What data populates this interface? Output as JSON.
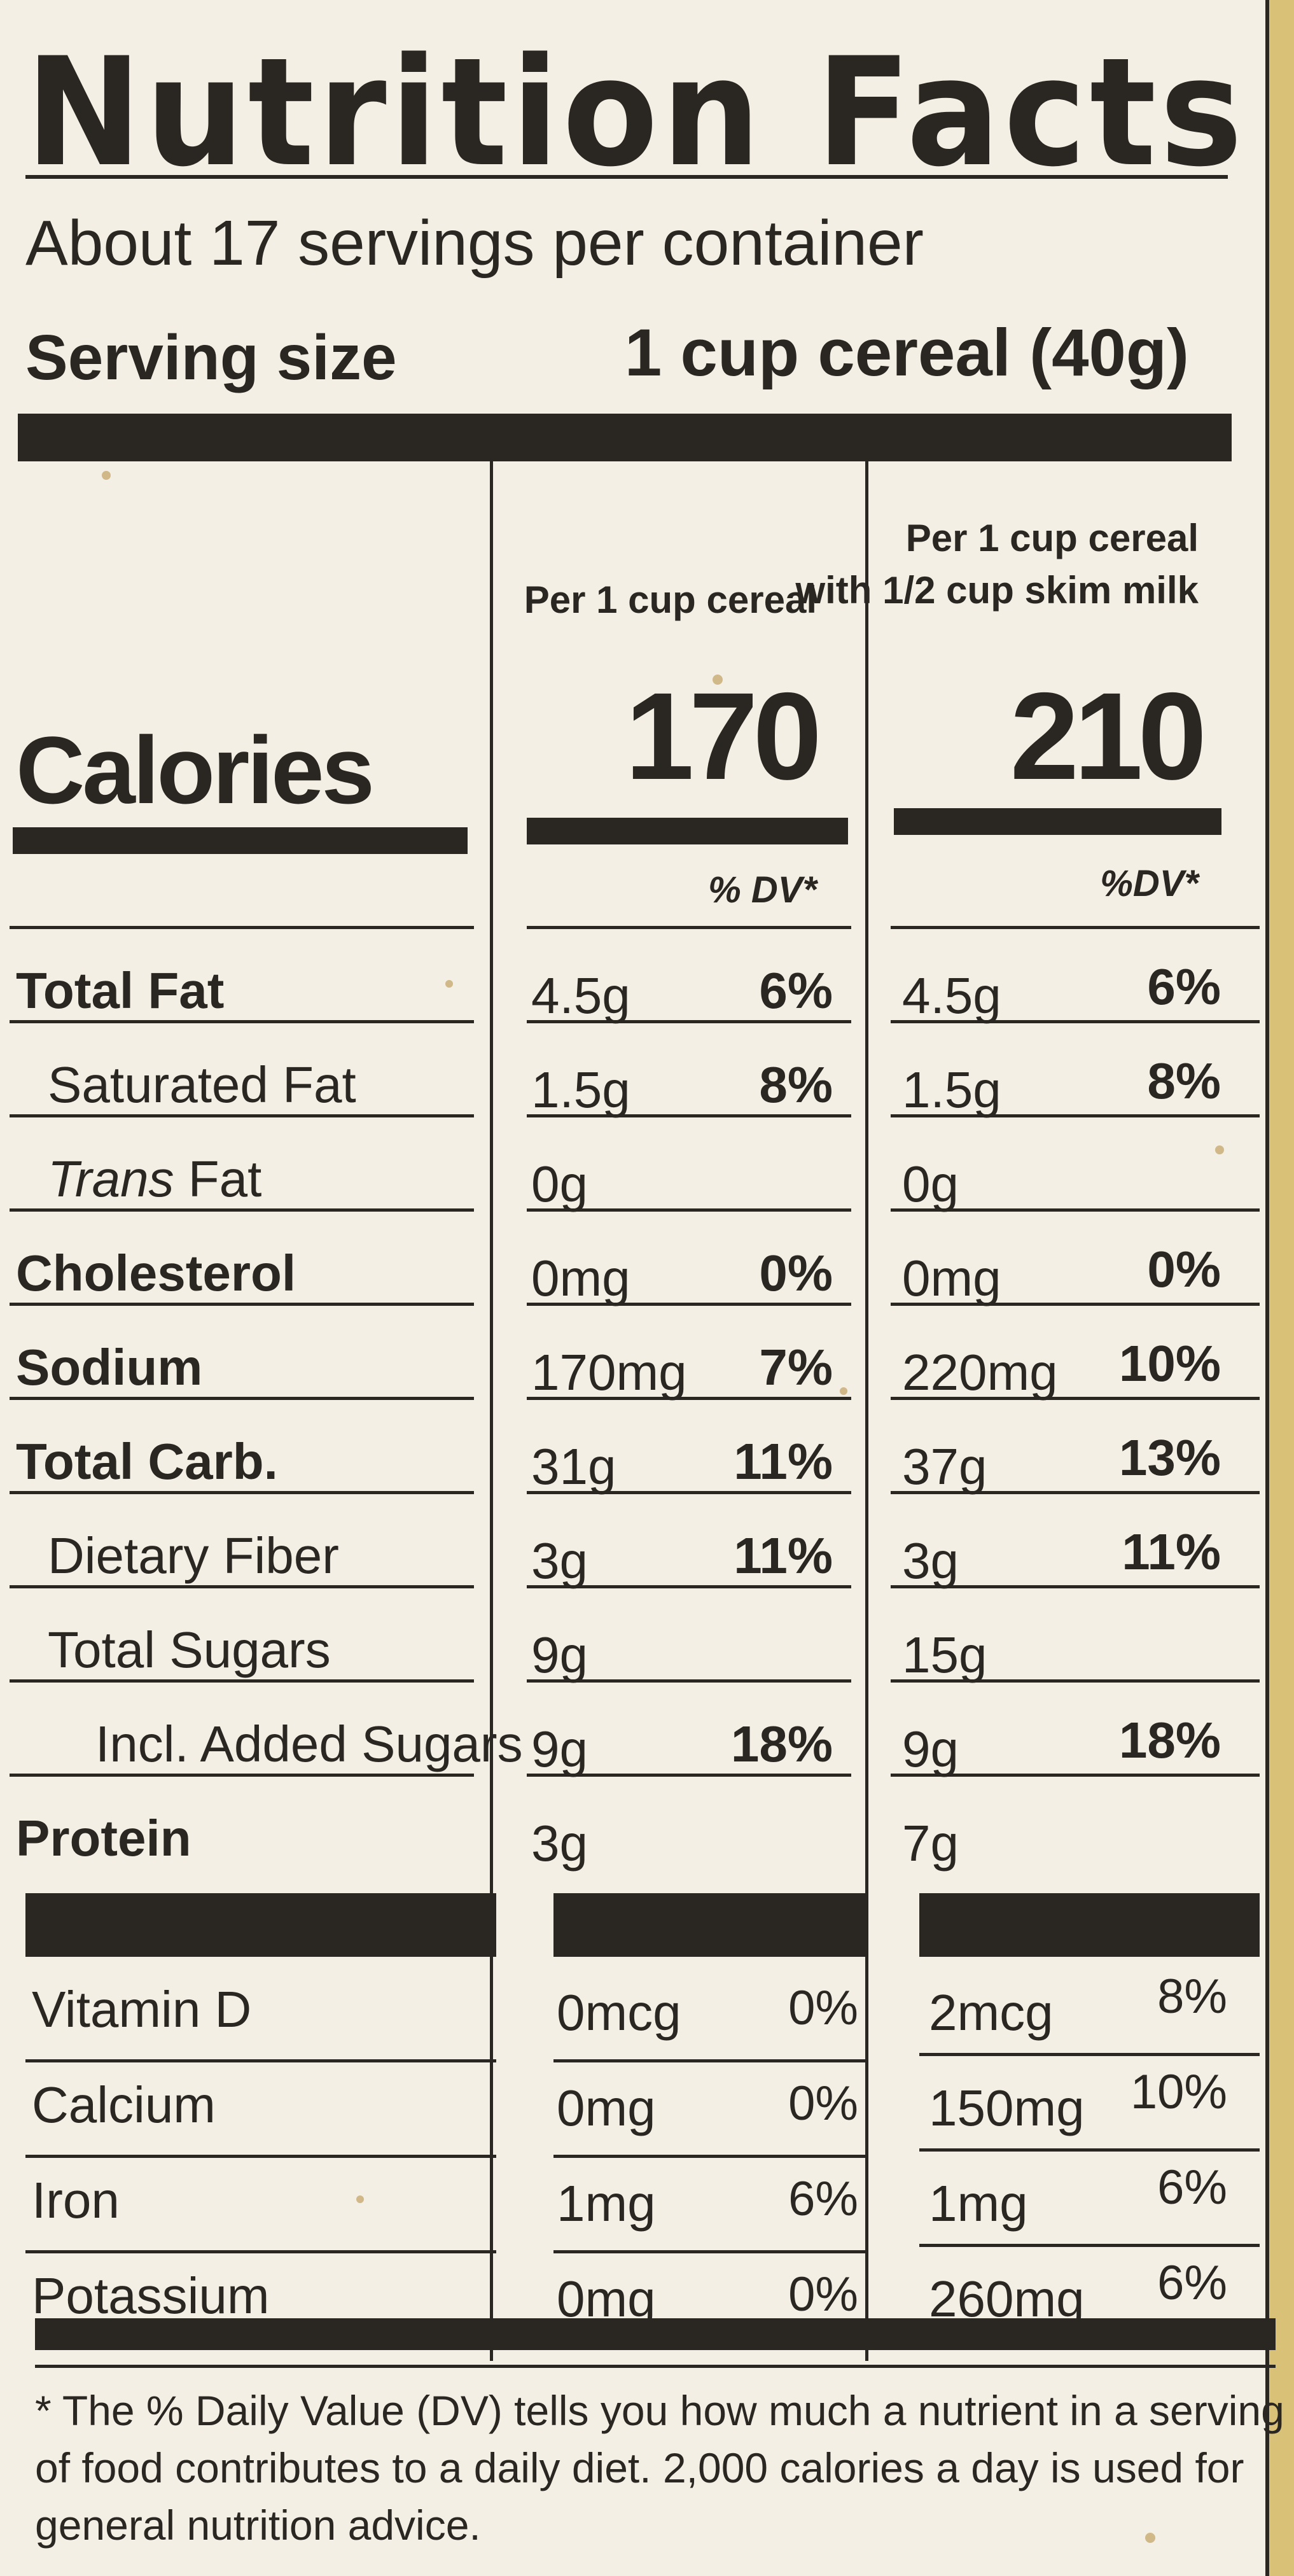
{
  "title": "Nutrition Facts",
  "servings_per_container": "About 17 servings per container",
  "serving_size_label": "Serving size",
  "serving_size_value": "1 cup cereal (40g)",
  "columns": {
    "col1_header": "Per 1 cup cereal",
    "col2_header_line1": "Per 1 cup cereal",
    "col2_header_line2": "with 1/2 cup skim milk"
  },
  "calories": {
    "label": "Calories",
    "col1": "170",
    "col2": "210"
  },
  "dv_header": "% DV*",
  "dv_header_col2": "%DV*",
  "nutrients": [
    {
      "label": "Total Fat",
      "bold": true,
      "indent": 0,
      "col1_amount": "4.5g",
      "col1_dv": "6%",
      "col2_amount": "4.5g",
      "col2_dv": "6%"
    },
    {
      "label": "Saturated Fat",
      "bold": false,
      "indent": 1,
      "col1_amount": "1.5g",
      "col1_dv": "8%",
      "col2_amount": "1.5g",
      "col2_dv": "8%"
    },
    {
      "label_italic": "Trans",
      "label_rest": " Fat",
      "bold": false,
      "indent": 1,
      "col1_amount": "0g",
      "col1_dv": "",
      "col2_amount": "0g",
      "col2_dv": ""
    },
    {
      "label": "Cholesterol",
      "bold": true,
      "indent": 0,
      "col1_amount": "0mg",
      "col1_dv": "0%",
      "col2_amount": "0mg",
      "col2_dv": "0%"
    },
    {
      "label": "Sodium",
      "bold": true,
      "indent": 0,
      "col1_amount": "170mg",
      "col1_dv": "7%",
      "col2_amount": "220mg",
      "col2_dv": "10%"
    },
    {
      "label": "Total Carb.",
      "bold": true,
      "indent": 0,
      "col1_amount": "31g",
      "col1_dv": "11%",
      "col2_amount": "37g",
      "col2_dv": "13%"
    },
    {
      "label": "Dietary Fiber",
      "bold": false,
      "indent": 1,
      "col1_amount": "3g",
      "col1_dv": "11%",
      "col2_amount": "3g",
      "col2_dv": "11%"
    },
    {
      "label": "Total Sugars",
      "bold": false,
      "indent": 1,
      "col1_amount": "9g",
      "col1_dv": "",
      "col2_amount": "15g",
      "col2_dv": ""
    },
    {
      "label": "Incl. Added Sugars",
      "bold": false,
      "indent": 2,
      "col1_amount": "9g",
      "col1_dv": "18%",
      "col2_amount": "9g",
      "col2_dv": "18%"
    },
    {
      "label": "Protein",
      "bold": true,
      "indent": 0,
      "col1_amount": "3g",
      "col1_dv": "",
      "col2_amount": "7g",
      "col2_dv": ""
    }
  ],
  "vitamins": [
    {
      "label": "Vitamin D",
      "col1_amount": "0mcg",
      "col1_dv": "0%",
      "col2_amount": "2mcg",
      "col2_dv": "8%"
    },
    {
      "label": "Calcium",
      "col1_amount": "0mg",
      "col1_dv": "0%",
      "col2_amount": "150mg",
      "col2_dv": "10%"
    },
    {
      "label": "Iron",
      "col1_amount": "1mg",
      "col1_dv": "6%",
      "col2_amount": "1mg",
      "col2_dv": "6%"
    },
    {
      "label": "Potassium",
      "col1_amount": "0mg",
      "col1_dv": "0%",
      "col2_amount": "260mg",
      "col2_dv": "6%"
    }
  ],
  "footnote": [
    "* The % Daily Value (DV) tells you how much a nutrient in a serving",
    "of food contributes to a daily diet. 2,000 calories a day is used for",
    "general nutrition advice."
  ]
}
